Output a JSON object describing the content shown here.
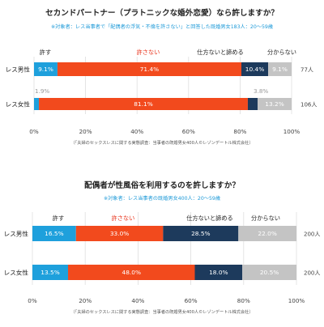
{
  "chart_data": [
    {
      "type": "bar",
      "orientation": "horizontal",
      "stacked": "percent",
      "title": "セカンドパートナー（プラトニックな婚外恋愛）なら許しますか？",
      "subtitle": "※対象者：レス当事者で「配偶者の浮気・不倫を許さない」と回答した既婚男女183人：20〜59歳",
      "categories": [
        "レス男性",
        "レス女性"
      ],
      "series": [
        {
          "name": "許す",
          "values": [
            9.1,
            1.9
          ],
          "color": "#1ea0dc"
        },
        {
          "name": "許さない",
          "values": [
            71.4,
            81.1
          ],
          "color": "#f24a1d"
        },
        {
          "name": "仕方ないと諦める",
          "values": [
            10.4,
            3.8
          ],
          "color": "#1d3a5c"
        },
        {
          "name": "分からない",
          "values": [
            9.1,
            13.2
          ],
          "color": "#c4c4c4"
        }
      ],
      "data_labels": [
        [
          "9.1%",
          "71.4%",
          "10.4%",
          "9.1%"
        ],
        [
          "1.9%",
          "81.1%",
          "3.8%",
          "13.2%"
        ]
      ],
      "totals": [
        "77人",
        "106人"
      ],
      "xlim": [
        0,
        100
      ],
      "xticks": [
        "0%",
        "20%",
        "40%",
        "60%",
        "80%",
        "100%"
      ],
      "grid": true,
      "legend": "top",
      "source": "（「夫婦のセックスレスに関する実態調査：当事者の既婚男女400人©レゾンデートル株式会社）"
    },
    {
      "type": "bar",
      "orientation": "horizontal",
      "stacked": "percent",
      "title": "配偶者が性風俗を利用するのを許しますか？",
      "subtitle": "※対象者：レス当事者の既婚男女400人：20〜59歳",
      "categories": [
        "レス男性",
        "レス女性"
      ],
      "series": [
        {
          "name": "許す",
          "values": [
            16.5,
            13.5
          ],
          "color": "#1ea0dc"
        },
        {
          "name": "許さない",
          "values": [
            33.0,
            48.0
          ],
          "color": "#f24a1d"
        },
        {
          "name": "仕方ないと諦める",
          "values": [
            28.5,
            18.0
          ],
          "color": "#1d3a5c"
        },
        {
          "name": "分からない",
          "values": [
            22.0,
            20.5
          ],
          "color": "#c4c4c4"
        }
      ],
      "data_labels": [
        [
          "16.5%",
          "33.0%",
          "28.5%",
          "22.0%"
        ],
        [
          "13.5%",
          "48.0%",
          "18.0%",
          "20.5%"
        ]
      ],
      "totals": [
        "200人",
        "200人"
      ],
      "xlim": [
        0,
        100
      ],
      "xticks": [
        "0%",
        "20%",
        "40%",
        "60%",
        "80%",
        "100%"
      ],
      "grid": true,
      "legend": "top",
      "source": "（「夫婦のセックスレスに関する実態調査：当事者の既婚男女400人©レゾンデートル株式会社）"
    }
  ],
  "colors": {
    "forgive": "#1ea0dc",
    "not_forgive": "#f24a1d",
    "give_up": "#1d3a5c",
    "unknown": "#c4c4c4",
    "legend_red_text": "#e8331b"
  }
}
